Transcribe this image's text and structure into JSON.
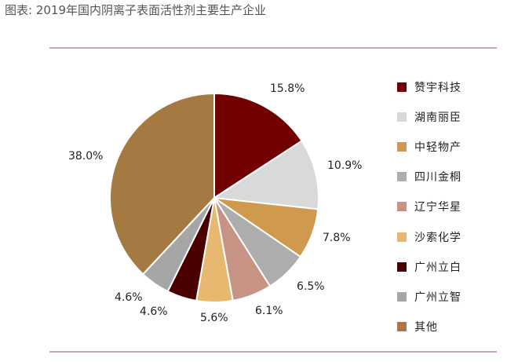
{
  "caption": "图表: 2019年国内阴离子表面活性剂主要生产企业",
  "chart_data": {
    "type": "pie",
    "title": "",
    "start_angle_deg": 0,
    "direction": "clockwise",
    "slices": [
      {
        "name": "赞宇科技",
        "value": 15.8,
        "label": "15.8%",
        "color": "#720000"
      },
      {
        "name": "湖南丽臣",
        "value": 10.9,
        "label": "10.9%",
        "color": "#d9d9d9"
      },
      {
        "name": "中轻物产",
        "value": 7.8,
        "label": "7.8%",
        "color": "#d09a4e"
      },
      {
        "name": "四川金桐",
        "value": 6.5,
        "label": "6.5%",
        "color": "#adadad"
      },
      {
        "name": "辽宁华星",
        "value": 6.1,
        "label": "6.1%",
        "color": "#c79385"
      },
      {
        "name": "沙索化学",
        "value": 5.6,
        "label": "5.6%",
        "color": "#e7b970"
      },
      {
        "name": "广州立白",
        "value": 4.6,
        "label": "4.6%",
        "color": "#4a0000"
      },
      {
        "name": "广州立智",
        "value": 4.6,
        "label": "4.6%",
        "color": "#a6a6a6"
      },
      {
        "name": "其他",
        "value": 38.0,
        "label": "38.0%",
        "color": "#a57a42"
      }
    ],
    "legend_position": "right"
  }
}
